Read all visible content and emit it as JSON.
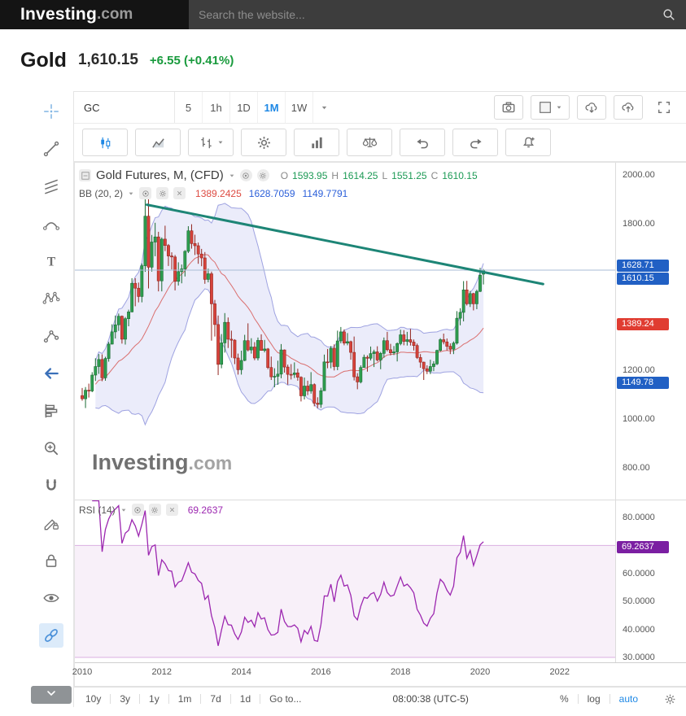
{
  "header": {
    "logo_primary": "Investing",
    "logo_suffix": ".com",
    "search_placeholder": "Search the website..."
  },
  "quote": {
    "symbol_name": "Gold",
    "last": "1,610.15",
    "change": "+6.55 (+0.41%)",
    "change_color": "#189a3c"
  },
  "toolbar": {
    "symbol": "GC",
    "intervals": [
      {
        "label": "5",
        "active": false
      },
      {
        "label": "1h",
        "active": false
      },
      {
        "label": "1D",
        "active": false
      },
      {
        "label": "1M",
        "active": true
      },
      {
        "label": "1W",
        "active": false
      }
    ],
    "right_buttons": [
      {
        "name": "snapshot-camera-button",
        "icon": "camera"
      },
      {
        "name": "chart-background-button",
        "icon": "layout-square",
        "caret": true
      },
      {
        "name": "download-chart-button",
        "icon": "cloud-download"
      },
      {
        "name": "upload-chart-button",
        "icon": "cloud-upload"
      },
      {
        "name": "fullscreen-button",
        "icon": "fullscreen",
        "borderless": true
      }
    ]
  },
  "toolbar2": {
    "buttons": [
      {
        "name": "chart-type-candles-button",
        "icon": "candles",
        "active": true
      },
      {
        "name": "chart-type-area-button",
        "icon": "area"
      },
      {
        "name": "chart-type-bars-button",
        "icon": "bars",
        "caret": true
      },
      {
        "name": "chart-settings-button",
        "icon": "gear"
      },
      {
        "name": "indicators-button",
        "icon": "indicators"
      },
      {
        "name": "compare-button",
        "icon": "compare"
      },
      {
        "name": "undo-button",
        "icon": "undo"
      },
      {
        "name": "redo-button",
        "icon": "redo"
      },
      {
        "name": "create-alert-button",
        "icon": "alert-bell"
      }
    ]
  },
  "tool_rail": {
    "items": [
      {
        "name": "crosshair-tool",
        "icon": "crosshair",
        "color": "#82b6e4"
      },
      {
        "name": "trendline-tool",
        "icon": "trendline"
      },
      {
        "name": "fib-lines-tool",
        "icon": "fib-lines"
      },
      {
        "name": "curve-tool",
        "icon": "curve"
      },
      {
        "name": "text-tool",
        "icon": "text"
      },
      {
        "name": "xabcd-pattern-tool",
        "icon": "xabcd"
      },
      {
        "name": "forecast-tool",
        "icon": "forecast"
      },
      {
        "name": "arrow-marker-tool",
        "icon": "arrow-left",
        "color": "#3a70b9"
      },
      {
        "name": "volume-profile-tool",
        "icon": "volume-profile"
      },
      {
        "name": "zoom-in-tool",
        "icon": "zoom-in"
      },
      {
        "name": "magnet-tool",
        "icon": "magnet"
      },
      {
        "name": "drawing-lock-tool",
        "icon": "drawing-lock"
      },
      {
        "name": "lock-all-tool",
        "icon": "lock"
      },
      {
        "name": "hide-all-tool",
        "icon": "eye"
      },
      {
        "name": "link-tool",
        "icon": "link",
        "color": "#4a90d9",
        "highlight": true
      }
    ]
  },
  "legend": {
    "title": "Gold Futures, M, (CFD)",
    "ohlc": [
      {
        "k": "O",
        "v": "1593.95"
      },
      {
        "k": "H",
        "v": "1614.25"
      },
      {
        "k": "L",
        "v": "1551.25"
      },
      {
        "k": "C",
        "v": "1610.15"
      }
    ],
    "bb_name": "BB (20, 2)",
    "bb_values": [
      {
        "v": "1389.2425",
        "color": "#dd4b42"
      },
      {
        "v": "1628.7059",
        "color": "#2b5fd9"
      },
      {
        "v": "1149.7791",
        "color": "#2b5fd9"
      }
    ],
    "rsi_name": "RSI (14)",
    "rsi_value": "69.2637"
  },
  "watermark": {
    "primary": "Investing",
    "suffix": ".com"
  },
  "price_axis": {
    "ticks": [
      {
        "label": "2000.00",
        "value": 2000
      },
      {
        "label": "1800.00",
        "value": 1800
      },
      {
        "label": "1200.00",
        "value": 1200
      },
      {
        "label": "1000.00",
        "value": 1000
      },
      {
        "label": "800.00",
        "value": 800
      }
    ],
    "badges": [
      {
        "label": "1628.71",
        "value": 1628.71,
        "color": "#2160c4"
      },
      {
        "label": "1610.15",
        "value": 1610.15,
        "color": "#2160c4"
      },
      {
        "label": "1389.24",
        "value": 1389.24,
        "color": "#e03c31"
      },
      {
        "label": "1149.78",
        "value": 1149.78,
        "color": "#2160c4"
      }
    ]
  },
  "rsi_axis": {
    "ticks": [
      {
        "label": "80.0000",
        "value": 80
      },
      {
        "label": "60.0000",
        "value": 60
      },
      {
        "label": "50.0000",
        "value": 50
      },
      {
        "label": "40.0000",
        "value": 40
      },
      {
        "label": "30.0000",
        "value": 30
      }
    ],
    "badge": {
      "label": "69.2637",
      "value": 69.2637,
      "color": "#7b1fa2"
    }
  },
  "time_axis": {
    "years": [
      {
        "label": "2010",
        "m": 0
      },
      {
        "label": "2012",
        "m": 24
      },
      {
        "label": "2014",
        "m": 48
      },
      {
        "label": "2016",
        "m": 72
      },
      {
        "label": "2018",
        "m": 96
      },
      {
        "label": "2020",
        "m": 120
      },
      {
        "label": "2022",
        "m": 144
      }
    ]
  },
  "bottom_bar": {
    "ranges": [
      "10y",
      "3y",
      "1y",
      "1m",
      "7d",
      "1d"
    ],
    "goto": "Go to...",
    "clock": "08:00:38 (UTC-5)",
    "scales": [
      "%",
      "log",
      "auto"
    ],
    "active_scale": "auto"
  },
  "chart_data": {
    "type": "candlestick",
    "title": "Gold Futures, Monthly, CFD",
    "interval": "1M",
    "x_start": "2010-01",
    "ohlc_fields": [
      "open",
      "high",
      "low",
      "close"
    ],
    "ohlc": [
      [
        1096,
        1127,
        1075,
        1083
      ],
      [
        1083,
        1131,
        1045,
        1118
      ],
      [
        1118,
        1145,
        1088,
        1115
      ],
      [
        1115,
        1192,
        1110,
        1180
      ],
      [
        1180,
        1249,
        1156,
        1215
      ],
      [
        1215,
        1266,
        1185,
        1244
      ],
      [
        1244,
        1265,
        1155,
        1169
      ],
      [
        1169,
        1255,
        1157,
        1248
      ],
      [
        1248,
        1316,
        1235,
        1307
      ],
      [
        1307,
        1388,
        1305,
        1357
      ],
      [
        1357,
        1424,
        1330,
        1386
      ],
      [
        1386,
        1432,
        1361,
        1421
      ],
      [
        1421,
        1424,
        1309,
        1327
      ],
      [
        1327,
        1418,
        1305,
        1411
      ],
      [
        1411,
        1448,
        1380,
        1439
      ],
      [
        1439,
        1577,
        1437,
        1556
      ],
      [
        1556,
        1577,
        1462,
        1536
      ],
      [
        1536,
        1559,
        1478,
        1502
      ],
      [
        1502,
        1637,
        1478,
        1628
      ],
      [
        1628,
        1917,
        1603,
        1831
      ],
      [
        1831,
        1923,
        1535,
        1622
      ],
      [
        1622,
        1754,
        1604,
        1725
      ],
      [
        1725,
        1804,
        1667,
        1746
      ],
      [
        1746,
        1767,
        1523,
        1566
      ],
      [
        1566,
        1744,
        1523,
        1737
      ],
      [
        1737,
        1792,
        1688,
        1711
      ],
      [
        1711,
        1717,
        1627,
        1668
      ],
      [
        1668,
        1683,
        1613,
        1664
      ],
      [
        1664,
        1672,
        1527,
        1564
      ],
      [
        1564,
        1642,
        1547,
        1604
      ],
      [
        1604,
        1633,
        1556,
        1615
      ],
      [
        1615,
        1692,
        1584,
        1687
      ],
      [
        1687,
        1790,
        1680,
        1771
      ],
      [
        1771,
        1798,
        1698,
        1719
      ],
      [
        1719,
        1755,
        1672,
        1710
      ],
      [
        1710,
        1723,
        1636,
        1676
      ],
      [
        1676,
        1697,
        1626,
        1660
      ],
      [
        1660,
        1684,
        1554,
        1572
      ],
      [
        1572,
        1616,
        1560,
        1595
      ],
      [
        1595,
        1604,
        1321,
        1472
      ],
      [
        1472,
        1488,
        1338,
        1387
      ],
      [
        1387,
        1424,
        1180,
        1224
      ],
      [
        1224,
        1348,
        1208,
        1312
      ],
      [
        1312,
        1434,
        1272,
        1396
      ],
      [
        1396,
        1416,
        1291,
        1327
      ],
      [
        1327,
        1362,
        1251,
        1323
      ],
      [
        1323,
        1327,
        1225,
        1250
      ],
      [
        1250,
        1268,
        1182,
        1202
      ],
      [
        1202,
        1280,
        1182,
        1240
      ],
      [
        1240,
        1345,
        1237,
        1321
      ],
      [
        1321,
        1392,
        1277,
        1283
      ],
      [
        1283,
        1331,
        1268,
        1295
      ],
      [
        1295,
        1315,
        1241,
        1250
      ],
      [
        1250,
        1334,
        1240,
        1322
      ],
      [
        1322,
        1347,
        1280,
        1281
      ],
      [
        1281,
        1324,
        1273,
        1287
      ],
      [
        1287,
        1291,
        1204,
        1211
      ],
      [
        1211,
        1256,
        1160,
        1173
      ],
      [
        1173,
        1208,
        1130,
        1175
      ],
      [
        1175,
        1239,
        1140,
        1184
      ],
      [
        1184,
        1307,
        1167,
        1283
      ],
      [
        1283,
        1285,
        1190,
        1213
      ],
      [
        1213,
        1223,
        1141,
        1183
      ],
      [
        1183,
        1225,
        1162,
        1182
      ],
      [
        1182,
        1232,
        1168,
        1189
      ],
      [
        1189,
        1206,
        1157,
        1171
      ],
      [
        1171,
        1175,
        1072,
        1095
      ],
      [
        1095,
        1170,
        1080,
        1135
      ],
      [
        1135,
        1157,
        1098,
        1115
      ],
      [
        1115,
        1192,
        1104,
        1141
      ],
      [
        1141,
        1146,
        1052,
        1065
      ],
      [
        1065,
        1089,
        1045,
        1060
      ],
      [
        1060,
        1128,
        1046,
        1116
      ],
      [
        1116,
        1264,
        1116,
        1234
      ],
      [
        1234,
        1287,
        1208,
        1233
      ],
      [
        1233,
        1299,
        1208,
        1290
      ],
      [
        1290,
        1306,
        1199,
        1215
      ],
      [
        1215,
        1362,
        1200,
        1320
      ],
      [
        1320,
        1377,
        1310,
        1357
      ],
      [
        1357,
        1367,
        1302,
        1311
      ],
      [
        1311,
        1352,
        1302,
        1317
      ],
      [
        1317,
        1321,
        1243,
        1273
      ],
      [
        1273,
        1338,
        1158,
        1173
      ],
      [
        1173,
        1188,
        1122,
        1152
      ],
      [
        1152,
        1220,
        1146,
        1211
      ],
      [
        1211,
        1264,
        1210,
        1253
      ],
      [
        1253,
        1261,
        1194,
        1249
      ],
      [
        1249,
        1297,
        1240,
        1268
      ],
      [
        1268,
        1284,
        1213,
        1275
      ],
      [
        1275,
        1298,
        1236,
        1242
      ],
      [
        1242,
        1275,
        1204,
        1269
      ],
      [
        1269,
        1334,
        1251,
        1321
      ],
      [
        1321,
        1357,
        1277,
        1284
      ],
      [
        1284,
        1308,
        1261,
        1271
      ],
      [
        1271,
        1299,
        1262,
        1275
      ],
      [
        1275,
        1314,
        1236,
        1309
      ],
      [
        1309,
        1366,
        1302,
        1345
      ],
      [
        1345,
        1364,
        1302,
        1318
      ],
      [
        1318,
        1357,
        1301,
        1325
      ],
      [
        1325,
        1369,
        1301,
        1315
      ],
      [
        1315,
        1326,
        1281,
        1301
      ],
      [
        1301,
        1309,
        1246,
        1252
      ],
      [
        1252,
        1266,
        1210,
        1233
      ],
      [
        1233,
        1235,
        1160,
        1206
      ],
      [
        1206,
        1220,
        1184,
        1196
      ],
      [
        1196,
        1243,
        1184,
        1215
      ],
      [
        1215,
        1237,
        1196,
        1226
      ],
      [
        1226,
        1284,
        1221,
        1281
      ],
      [
        1281,
        1331,
        1276,
        1325
      ],
      [
        1325,
        1350,
        1306,
        1316
      ],
      [
        1316,
        1330,
        1281,
        1298
      ],
      [
        1298,
        1310,
        1266,
        1286
      ],
      [
        1286,
        1318,
        1266,
        1311
      ],
      [
        1311,
        1442,
        1305,
        1413
      ],
      [
        1413,
        1454,
        1384,
        1437
      ],
      [
        1437,
        1565,
        1400,
        1529
      ],
      [
        1529,
        1566,
        1465,
        1472
      ],
      [
        1472,
        1525,
        1459,
        1514
      ],
      [
        1514,
        1517,
        1445,
        1472
      ],
      [
        1472,
        1530,
        1450,
        1523
      ],
      [
        1523,
        1619,
        1520,
        1589
      ],
      [
        1593.95,
        1614.25,
        1551.25,
        1610.15
      ]
    ],
    "indicators": {
      "bollinger": {
        "period": 20,
        "stddev": 2,
        "last_upper": 1628.7059,
        "last_middle": 1389.2425,
        "last_lower": 1149.7791
      },
      "rsi": {
        "period": 14,
        "last": 69.2637,
        "upper_band": 70,
        "lower_band": 30
      }
    },
    "overlays": {
      "trendline": {
        "from": {
          "month_index": 19.5,
          "price": 1878
        },
        "to": {
          "month_index": 139,
          "price": 1553
        }
      },
      "last_price_line": 1610.15
    },
    "colors": {
      "up": "#2e9e4f",
      "up_border": "#1b6b33",
      "down": "#d7433b",
      "down_border": "#93261f",
      "bb_fill": "rgba(104,108,214,0.13)",
      "bb_line": "rgba(88,94,202,0.55)",
      "bb_mid": "rgba(214,80,76,0.8)",
      "trend": "#1d8576",
      "rsi": "#9c27b0",
      "rsi_band_fill": "rgba(156,39,176,0.07)",
      "rsi_band_line": "rgba(156,39,176,0.35)",
      "last_price_line": "#a9bbd6"
    }
  }
}
